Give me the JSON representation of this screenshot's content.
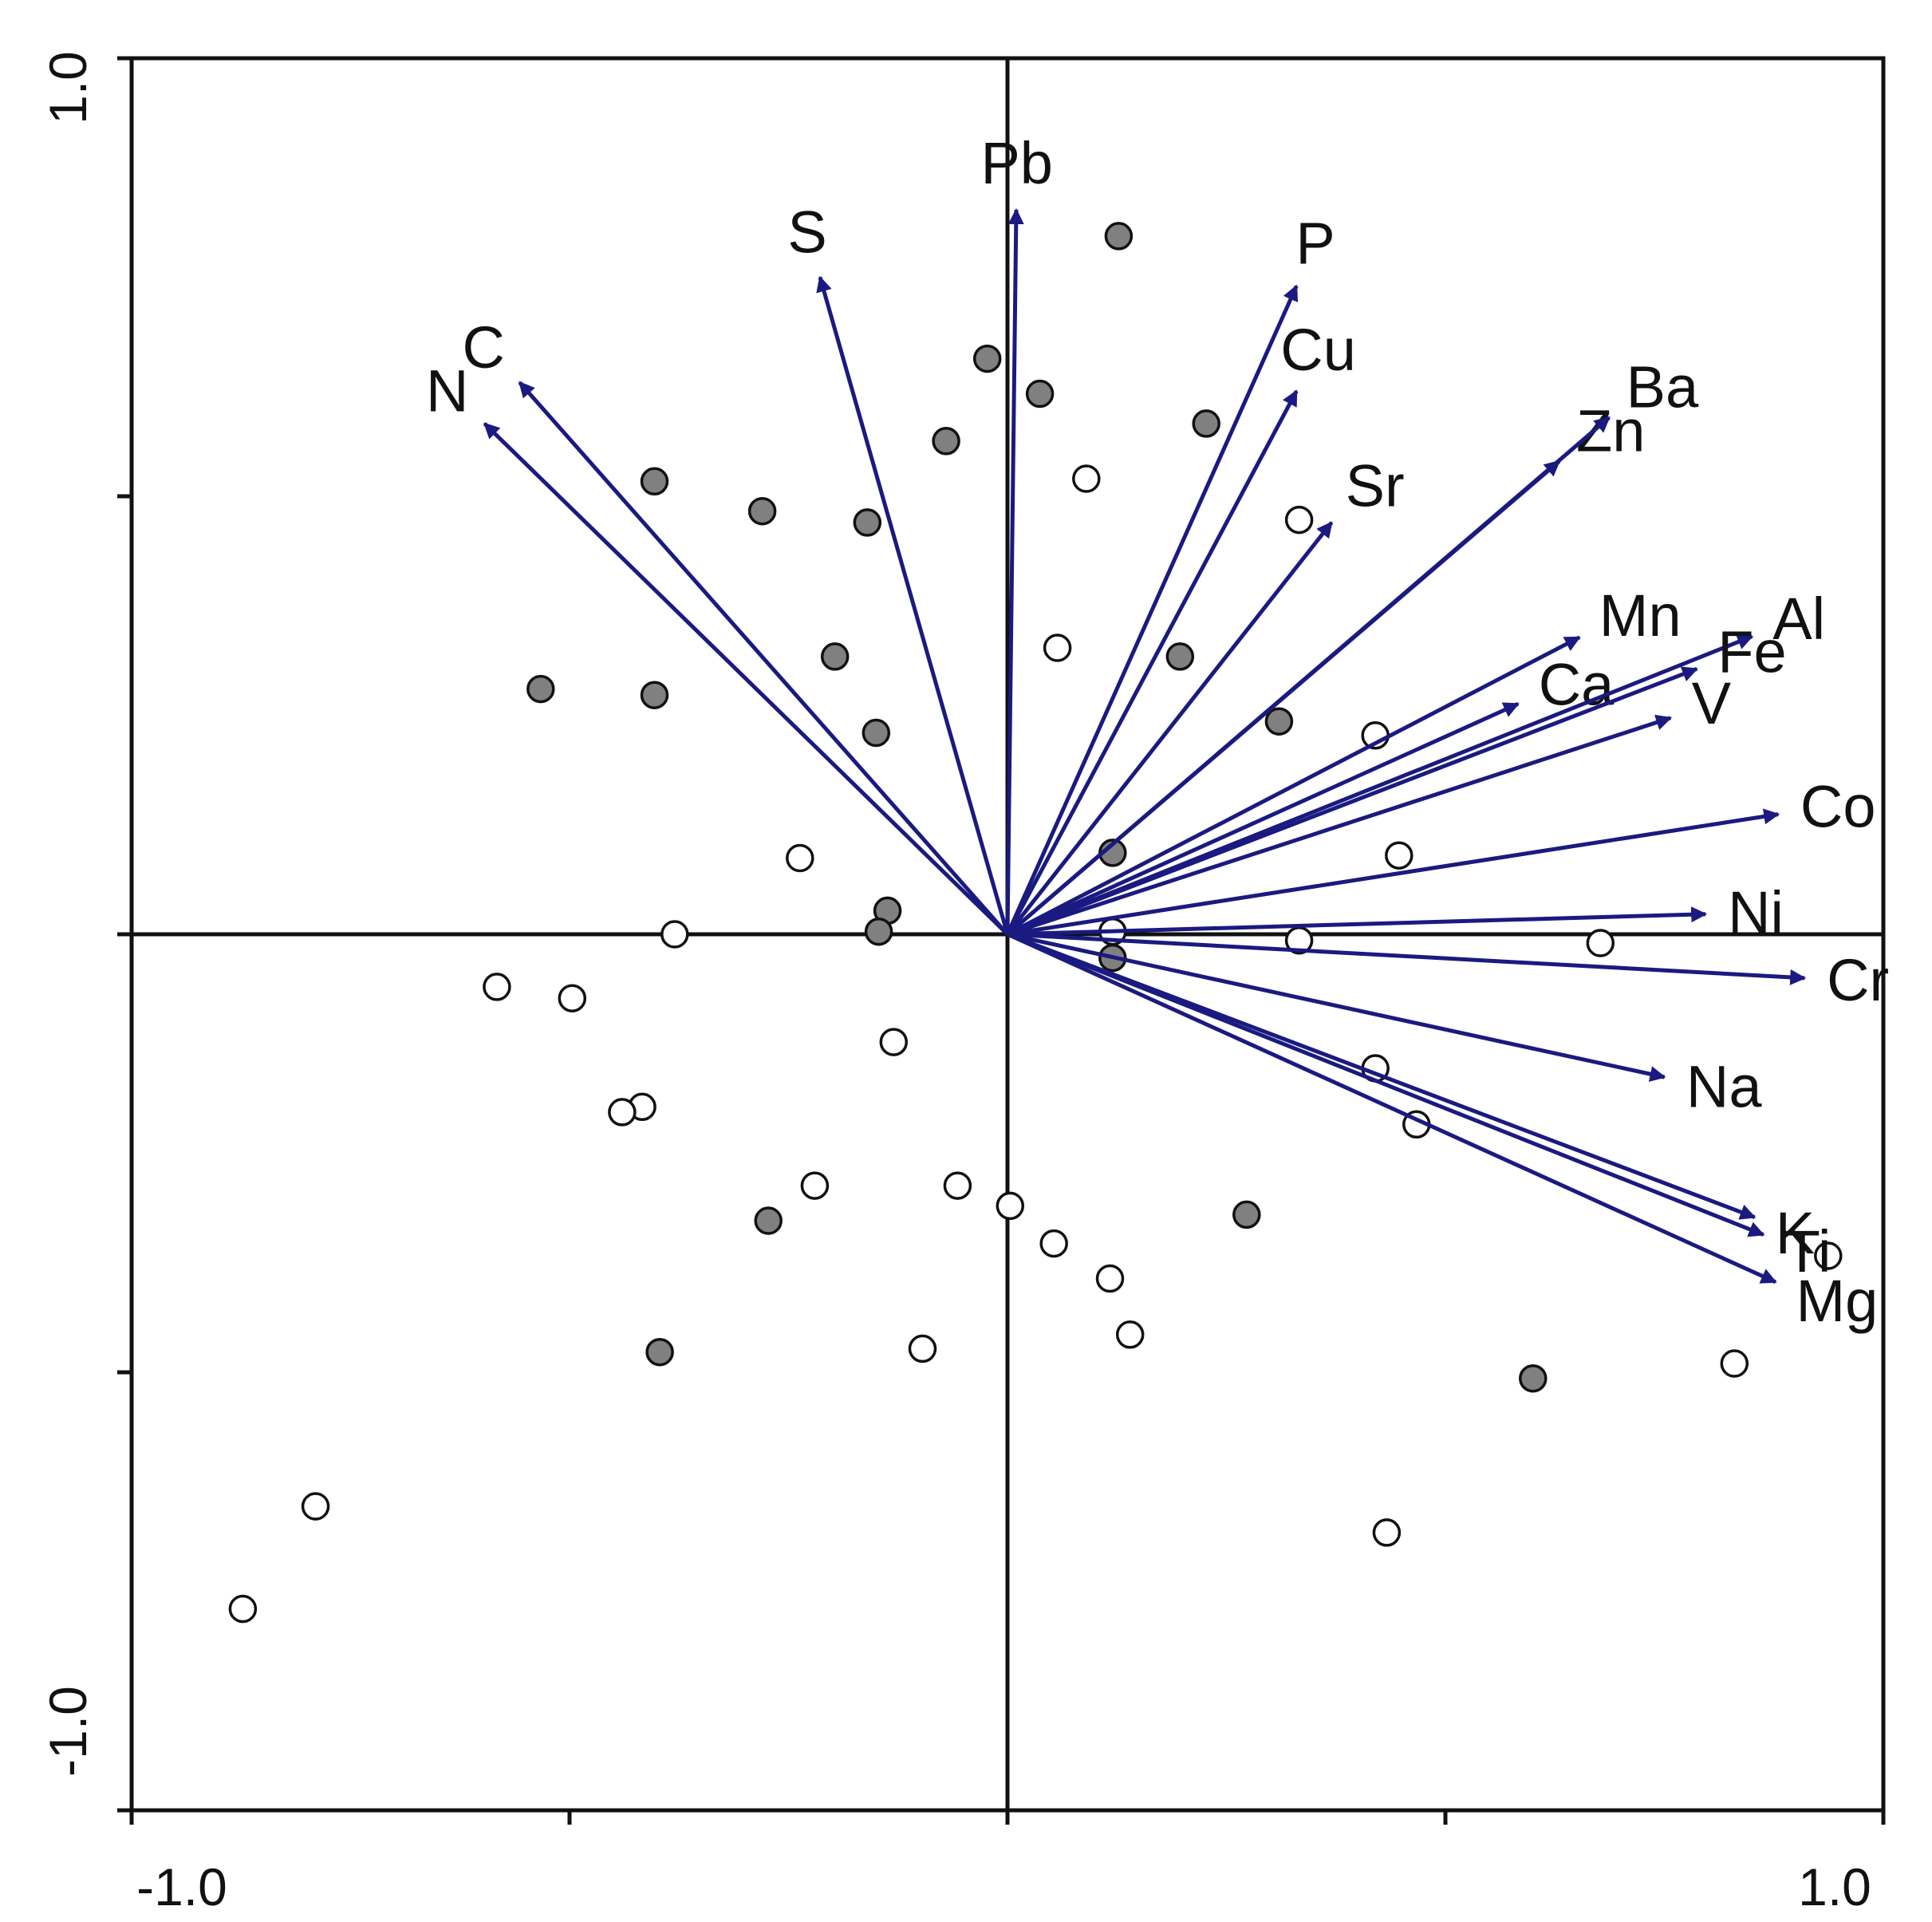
{
  "chart_data": {
    "type": "scatter",
    "subtype": "biplot",
    "title": "",
    "xlabel": "",
    "ylabel": "",
    "xlim": [
      -1.0,
      1.0
    ],
    "ylim": [
      -1.0,
      1.0
    ],
    "x_tick_labels": [
      "-1.0",
      "1.0"
    ],
    "y_tick_labels": [
      "1.0",
      "-1.0"
    ],
    "grid": false,
    "arrow_color": "#1a1a80",
    "point_colors": {
      "filled": "#808080",
      "open": "#ffffff",
      "outline": "#111111"
    },
    "vectors": [
      {
        "label": "N",
        "x": -0.597,
        "y": 0.583
      },
      {
        "label": "C",
        "x": -0.557,
        "y": 0.63
      },
      {
        "label": "S",
        "x": -0.214,
        "y": 0.75
      },
      {
        "label": "Pb",
        "x": 0.01,
        "y": 0.827
      },
      {
        "label": "P",
        "x": 0.33,
        "y": 0.74
      },
      {
        "label": "Cu",
        "x": 0.33,
        "y": 0.62
      },
      {
        "label": "Sr",
        "x": 0.37,
        "y": 0.47
      },
      {
        "label": "Zn",
        "x": 0.63,
        "y": 0.54
      },
      {
        "label": "Ba",
        "x": 0.687,
        "y": 0.59
      },
      {
        "label": "Ca",
        "x": 0.583,
        "y": 0.263
      },
      {
        "label": "Mn",
        "x": 0.653,
        "y": 0.339
      },
      {
        "label": "Al",
        "x": 0.85,
        "y": 0.34
      },
      {
        "label": "Fe",
        "x": 0.787,
        "y": 0.303
      },
      {
        "label": "V",
        "x": 0.757,
        "y": 0.247
      },
      {
        "label": "Co",
        "x": 0.88,
        "y": 0.137
      },
      {
        "label": "Ni",
        "x": 0.797,
        "y": 0.023
      },
      {
        "label": "Cr",
        "x": 0.91,
        "y": -0.05
      },
      {
        "label": "Na",
        "x": 0.75,
        "y": -0.163
      },
      {
        "label": "K",
        "x": 0.853,
        "y": -0.323
      },
      {
        "label": "Ti",
        "x": 0.863,
        "y": -0.343
      },
      {
        "label": "Mg",
        "x": 0.877,
        "y": -0.397
      }
    ],
    "series": [
      {
        "points": [
          [
            0.127,
            0.797
          ],
          [
            -0.023,
            0.657
          ],
          [
            0.037,
            0.617
          ],
          [
            0.227,
            0.583
          ],
          [
            -0.07,
            0.563
          ],
          [
            -0.403,
            0.517
          ],
          [
            -0.28,
            0.483
          ],
          [
            -0.16,
            0.47
          ],
          [
            -0.197,
            0.317
          ],
          [
            0.197,
            0.317
          ],
          [
            -0.533,
            0.28
          ],
          [
            -0.403,
            0.273
          ],
          [
            -0.15,
            0.23
          ],
          [
            0.31,
            0.243
          ],
          [
            0.12,
            0.093
          ],
          [
            -0.137,
            0.027
          ],
          [
            -0.147,
            0.003
          ],
          [
            0.12,
            -0.027
          ],
          [
            -0.273,
            -0.327
          ],
          [
            0.273,
            -0.32
          ],
          [
            -0.397,
            -0.477
          ],
          [
            0.6,
            -0.507
          ]
        ]
      },
      {
        "points": [
          [
            0.09,
            0.52
          ],
          [
            0.333,
            0.473
          ],
          [
            0.057,
            0.327
          ],
          [
            0.42,
            0.227
          ],
          [
            -0.237,
            0.087
          ],
          [
            0.447,
            0.09
          ],
          [
            -0.38,
            0.0
          ],
          [
            0.12,
            0.003
          ],
          [
            0.333,
            -0.007
          ],
          [
            0.677,
            -0.01
          ],
          [
            -0.583,
            -0.06
          ],
          [
            -0.497,
            -0.073
          ],
          [
            -0.13,
            -0.123
          ],
          [
            0.42,
            -0.153
          ],
          [
            -0.417,
            -0.197
          ],
          [
            -0.44,
            -0.203
          ],
          [
            0.467,
            -0.217
          ],
          [
            -0.22,
            -0.287
          ],
          [
            -0.057,
            -0.287
          ],
          [
            0.003,
            -0.31
          ],
          [
            0.937,
            -0.367
          ],
          [
            0.053,
            -0.353
          ],
          [
            0.117,
            -0.393
          ],
          [
            0.14,
            -0.457
          ],
          [
            -0.097,
            -0.473
          ],
          [
            0.83,
            -0.49
          ],
          [
            -0.79,
            -0.653
          ],
          [
            0.433,
            -0.683
          ],
          [
            -0.873,
            -0.77
          ]
        ]
      }
    ]
  }
}
